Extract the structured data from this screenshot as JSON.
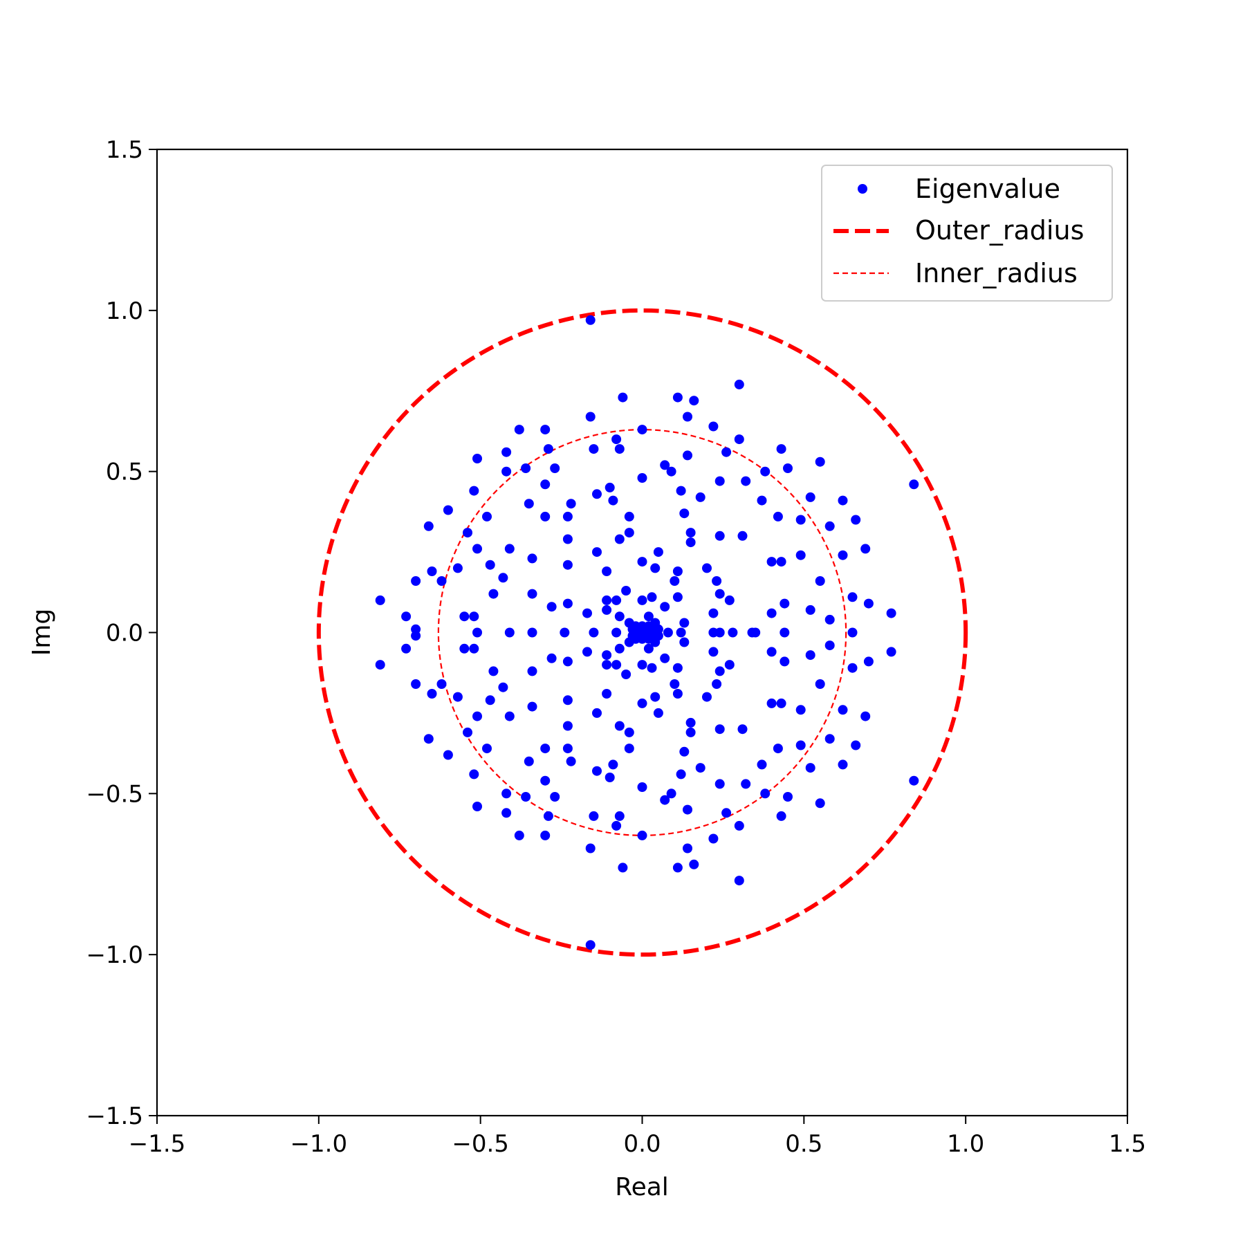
{
  "chart_data": {
    "type": "scatter",
    "xlabel": "Real",
    "ylabel": "Img",
    "xlim": [
      -1.5,
      1.5
    ],
    "ylim": [
      -1.5,
      1.5
    ],
    "xticks": [
      -1.5,
      -1.0,
      -0.5,
      0.0,
      0.5,
      1.0,
      1.5
    ],
    "yticks": [
      -1.5,
      -1.0,
      -0.5,
      0.0,
      0.5,
      1.0,
      1.5
    ],
    "xtick_labels": [
      "−1.5",
      "−1.0",
      "−0.5",
      "0.0",
      "0.5",
      "1.0",
      "1.5"
    ],
    "ytick_labels": [
      "−1.5",
      "−1.0",
      "−0.5",
      "0.0",
      "0.5",
      "1.0",
      "1.5"
    ],
    "grid": false,
    "legend_position": "top-right",
    "legend": [
      "Eigenvalue",
      "Outer_radius",
      "Inner_radius"
    ],
    "colors": {
      "points": "#0000ff",
      "circles": "#ff0000"
    },
    "circles": [
      {
        "name": "Outer_radius",
        "radius": 1.0,
        "style": "dashed-thick"
      },
      {
        "name": "Inner_radius",
        "radius": 0.63,
        "style": "dashed-thin"
      }
    ],
    "series": [
      {
        "name": "Eigenvalue",
        "points_symmetric_about_real_axis": true,
        "points": [
          [
            -0.16,
            0.97
          ],
          [
            -0.06,
            0.73
          ],
          [
            0.11,
            0.73
          ],
          [
            0.16,
            0.72
          ],
          [
            0.3,
            0.77
          ],
          [
            0.14,
            0.67
          ],
          [
            -0.16,
            0.67
          ],
          [
            -0.3,
            0.63
          ],
          [
            -0.38,
            0.63
          ],
          [
            0.0,
            0.63
          ],
          [
            0.22,
            0.64
          ],
          [
            0.3,
            0.6
          ],
          [
            -0.08,
            0.6
          ],
          [
            -0.29,
            0.57
          ],
          [
            -0.42,
            0.56
          ],
          [
            -0.15,
            0.57
          ],
          [
            -0.07,
            0.57
          ],
          [
            0.26,
            0.56
          ],
          [
            0.43,
            0.57
          ],
          [
            -0.51,
            0.54
          ],
          [
            0.55,
            0.53
          ],
          [
            0.07,
            0.52
          ],
          [
            0.09,
            0.5
          ],
          [
            0.14,
            0.55
          ],
          [
            -0.27,
            0.51
          ],
          [
            -0.36,
            0.51
          ],
          [
            -0.42,
            0.5
          ],
          [
            0.0,
            0.48
          ],
          [
            0.38,
            0.5
          ],
          [
            0.45,
            0.51
          ],
          [
            0.84,
            0.46
          ],
          [
            -0.3,
            0.46
          ],
          [
            -0.14,
            0.43
          ],
          [
            -0.1,
            0.45
          ],
          [
            0.12,
            0.44
          ],
          [
            0.24,
            0.47
          ],
          [
            0.32,
            0.47
          ],
          [
            -0.52,
            0.44
          ],
          [
            -0.09,
            0.41
          ],
          [
            0.18,
            0.42
          ],
          [
            0.37,
            0.41
          ],
          [
            0.52,
            0.42
          ],
          [
            0.62,
            0.41
          ],
          [
            -0.35,
            0.4
          ],
          [
            -0.22,
            0.4
          ],
          [
            -0.6,
            0.38
          ],
          [
            0.13,
            0.37
          ],
          [
            0.42,
            0.36
          ],
          [
            -0.48,
            0.36
          ],
          [
            -0.23,
            0.36
          ],
          [
            -0.3,
            0.36
          ],
          [
            -0.04,
            0.36
          ],
          [
            0.49,
            0.35
          ],
          [
            0.66,
            0.35
          ],
          [
            -0.66,
            0.33
          ],
          [
            0.58,
            0.33
          ],
          [
            -0.54,
            0.31
          ],
          [
            -0.04,
            0.31
          ],
          [
            0.15,
            0.31
          ],
          [
            0.24,
            0.3
          ],
          [
            0.31,
            0.3
          ],
          [
            -0.07,
            0.29
          ],
          [
            -0.23,
            0.29
          ],
          [
            0.15,
            0.28
          ],
          [
            -0.51,
            0.26
          ],
          [
            -0.41,
            0.26
          ],
          [
            0.69,
            0.26
          ],
          [
            -0.14,
            0.25
          ],
          [
            0.05,
            0.25
          ],
          [
            0.49,
            0.24
          ],
          [
            0.62,
            0.24
          ],
          [
            -0.34,
            0.23
          ],
          [
            -0.57,
            0.2
          ],
          [
            -0.65,
            0.19
          ],
          [
            -0.47,
            0.21
          ],
          [
            -0.23,
            0.21
          ],
          [
            0.0,
            0.22
          ],
          [
            0.04,
            0.2
          ],
          [
            0.2,
            0.2
          ],
          [
            0.4,
            0.22
          ],
          [
            0.43,
            0.22
          ],
          [
            -0.11,
            0.19
          ],
          [
            0.11,
            0.19
          ],
          [
            -0.62,
            0.16
          ],
          [
            -0.7,
            0.16
          ],
          [
            -0.43,
            0.17
          ],
          [
            0.1,
            0.16
          ],
          [
            0.23,
            0.16
          ],
          [
            0.55,
            0.16
          ],
          [
            -0.46,
            0.12
          ],
          [
            -0.34,
            0.12
          ],
          [
            0.24,
            0.12
          ],
          [
            -0.11,
            0.1
          ],
          [
            0.11,
            0.11
          ],
          [
            -0.05,
            0.13
          ],
          [
            0.03,
            0.11
          ],
          [
            -0.08,
            0.1
          ],
          [
            0.65,
            0.11
          ],
          [
            -0.23,
            0.09
          ],
          [
            -0.81,
            0.1
          ],
          [
            0.27,
            0.1
          ],
          [
            0.7,
            0.09
          ],
          [
            0.44,
            0.09
          ],
          [
            0.0,
            0.1
          ],
          [
            -0.11,
            0.07
          ],
          [
            -0.28,
            0.08
          ],
          [
            0.07,
            0.08
          ],
          [
            0.52,
            0.07
          ],
          [
            0.77,
            0.06
          ],
          [
            -0.73,
            0.05
          ],
          [
            0.4,
            0.06
          ],
          [
            -0.55,
            0.05
          ],
          [
            -0.52,
            0.05
          ],
          [
            0.58,
            0.04
          ],
          [
            -0.07,
            0.05
          ],
          [
            -0.17,
            0.06
          ],
          [
            0.22,
            0.06
          ],
          [
            0.02,
            0.05
          ],
          [
            0.13,
            0.03
          ],
          [
            -0.04,
            0.03
          ],
          [
            -0.02,
            0.02
          ],
          [
            0.0,
            0.02
          ],
          [
            0.02,
            0.02
          ],
          [
            0.04,
            0.03
          ],
          [
            -0.7,
            0.01
          ],
          [
            -0.01,
            0.01
          ],
          [
            0.01,
            0.01
          ],
          [
            -0.03,
            0.01
          ],
          [
            0.03,
            0.01
          ],
          [
            0.05,
            0.01
          ],
          [
            -0.51,
            0.0
          ],
          [
            -0.41,
            0.0
          ],
          [
            -0.34,
            0.0
          ],
          [
            -0.24,
            0.0
          ],
          [
            -0.15,
            0.0
          ],
          [
            -0.08,
            0.0
          ],
          [
            0.0,
            0.0
          ],
          [
            0.08,
            0.0
          ],
          [
            0.12,
            0.0
          ],
          [
            0.22,
            0.0
          ],
          [
            0.24,
            0.0
          ],
          [
            0.28,
            0.0
          ],
          [
            0.34,
            0.0
          ],
          [
            0.35,
            0.0
          ],
          [
            0.44,
            0.0
          ],
          [
            0.65,
            0.0
          ]
        ]
      }
    ]
  }
}
